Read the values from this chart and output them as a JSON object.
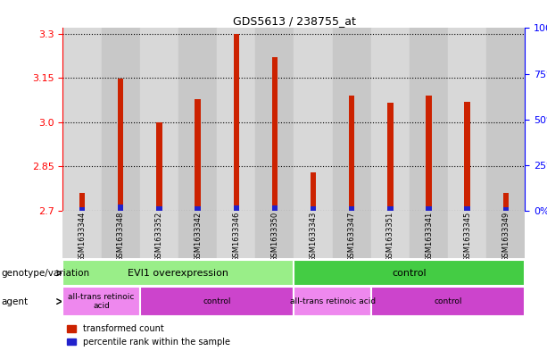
{
  "title": "GDS5613 / 238755_at",
  "samples": [
    "GSM1633344",
    "GSM1633348",
    "GSM1633352",
    "GSM1633342",
    "GSM1633346",
    "GSM1633350",
    "GSM1633343",
    "GSM1633347",
    "GSM1633351",
    "GSM1633341",
    "GSM1633345",
    "GSM1633349"
  ],
  "red_values": [
    2.76,
    3.148,
    3.0,
    3.08,
    3.3,
    3.22,
    2.83,
    3.09,
    3.065,
    3.09,
    3.07,
    2.76
  ],
  "blue_values": [
    2.712,
    2.722,
    2.716,
    2.716,
    2.718,
    2.718,
    2.714,
    2.716,
    2.716,
    2.716,
    2.716,
    2.712
  ],
  "base_value": 2.7,
  "ylim_min": 2.7,
  "ylim_max": 3.32,
  "yticks_left": [
    2.7,
    2.85,
    3.0,
    3.15,
    3.3
  ],
  "yticks_right": [
    0,
    25,
    50,
    75,
    100
  ],
  "yticks_right_labels": [
    "0%",
    "25%",
    "50%",
    "75%",
    "100%"
  ],
  "bar_width": 0.15,
  "red_color": "#cc2200",
  "blue_color": "#2222cc",
  "col_colors": [
    "#d8d8d8",
    "#c8c8c8",
    "#d8d8d8",
    "#c8c8c8",
    "#d8d8d8",
    "#c8c8c8",
    "#d8d8d8",
    "#c8c8c8",
    "#d8d8d8",
    "#c8c8c8",
    "#d8d8d8",
    "#c8c8c8"
  ],
  "genotype_groups": [
    {
      "label": "EVI1 overexpression",
      "start": 0,
      "end": 5,
      "color": "#99ee88"
    },
    {
      "label": "control",
      "start": 6,
      "end": 11,
      "color": "#44cc44"
    }
  ],
  "agent_groups": [
    {
      "label": "all-trans retinoic\nacid",
      "start": 0,
      "end": 1,
      "color": "#ee88ee"
    },
    {
      "label": "control",
      "start": 2,
      "end": 5,
      "color": "#cc44cc"
    },
    {
      "label": "all-trans retinoic acid",
      "start": 6,
      "end": 7,
      "color": "#ee88ee"
    },
    {
      "label": "control",
      "start": 8,
      "end": 11,
      "color": "#cc44cc"
    }
  ],
  "legend_red": "transformed count",
  "legend_blue": "percentile rank within the sample",
  "genotype_label": "genotype/variation",
  "agent_label": "agent"
}
